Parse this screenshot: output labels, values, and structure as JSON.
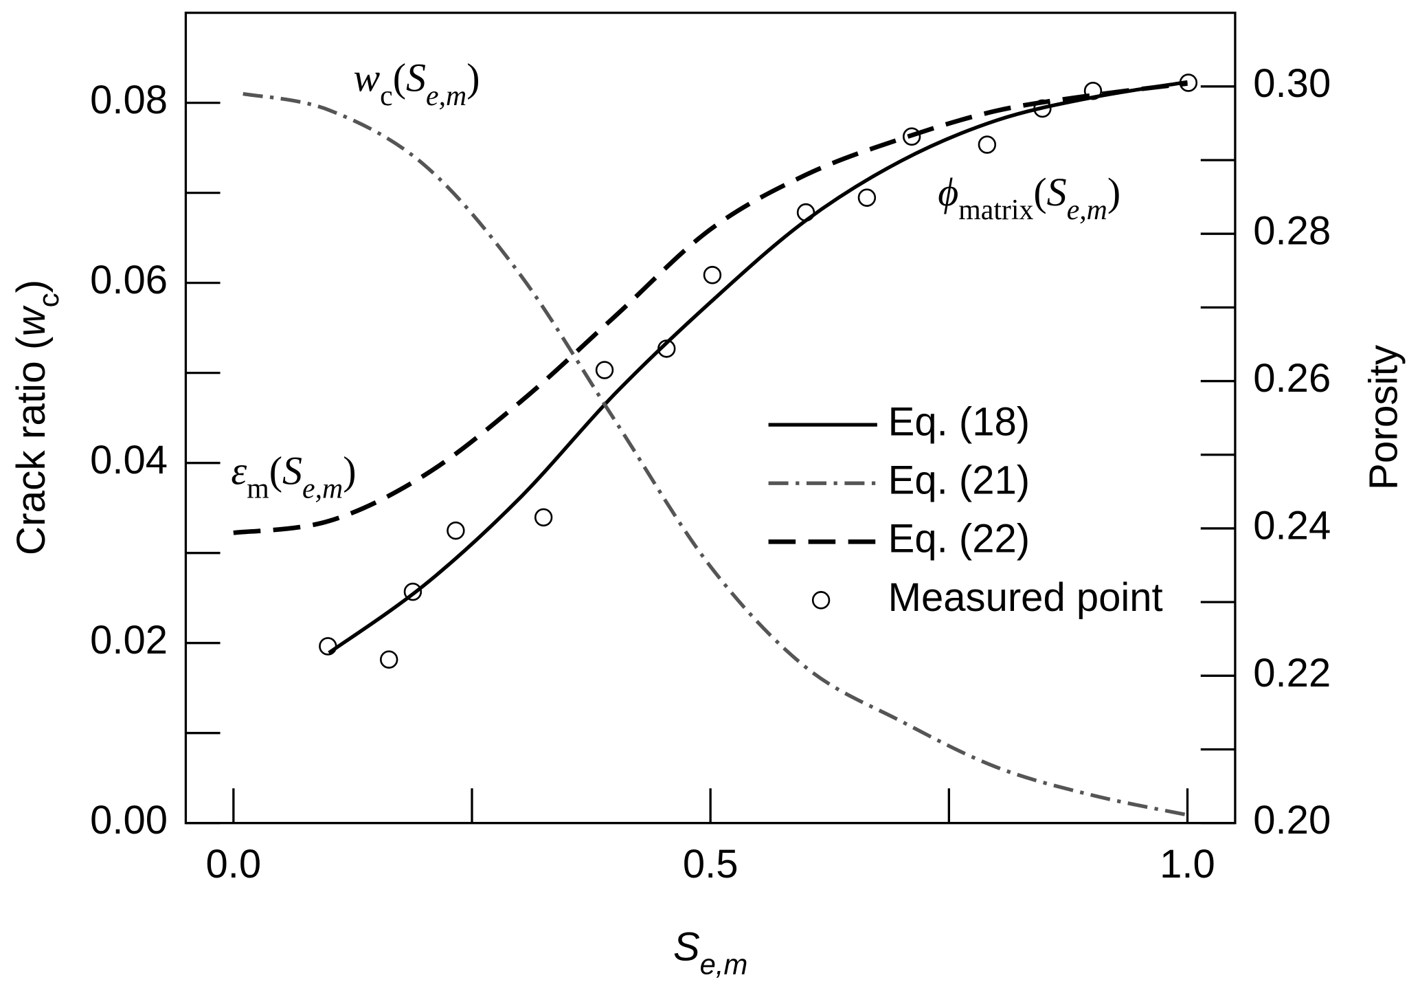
{
  "chart_data": {
    "type": "line",
    "x_label": [
      {
        "text": "S",
        "italic": true,
        "sub": false
      },
      {
        "text": "e,m",
        "italic": true,
        "sub": true
      }
    ],
    "y_label": [
      {
        "text": "Crack ratio (",
        "italic": false,
        "sub": false
      },
      {
        "text": "w",
        "italic": true,
        "sub": false
      },
      {
        "text": "c",
        "italic": false,
        "sub": true
      },
      {
        "text": ")",
        "italic": false,
        "sub": false
      }
    ],
    "y2_label": "Porosity",
    "xlim": [
      -0.05,
      1.05
    ],
    "xticks": [
      {
        "value": 0,
        "label": "0.0"
      },
      0.5,
      {
        "value": 1,
        "label": "1.0"
      }
    ],
    "xminor_ticks": [
      0.25,
      0.75
    ],
    "ylim": [
      0,
      0.09
    ],
    "yticks": [
      {
        "value": 0,
        "label": "0.00"
      },
      {
        "value": 0.02,
        "label": "0.02"
      },
      {
        "value": 0.04,
        "label": "0.04"
      },
      {
        "value": 0.06,
        "label": "0.06"
      },
      {
        "value": 0.08,
        "label": "0.08"
      }
    ],
    "yminor_ticks": [
      0.01,
      0.03,
      0.05,
      0.07
    ],
    "y2lim": [
      0.2,
      0.31
    ],
    "y2ticks": [
      {
        "value": 0.2,
        "label": "0.20"
      },
      0.22,
      0.24,
      0.26,
      0.28,
      {
        "value": 0.3,
        "label": "0.30"
      }
    ],
    "y2minor_ticks": [
      0.21,
      0.23,
      0.25,
      0.27,
      0.29
    ],
    "legend": "center-right",
    "series": [
      {
        "name": "Eq. (18)",
        "color": "#000000",
        "style": "solid",
        "axis": "y2",
        "x": [
          0.1,
          0.2,
          0.3,
          0.4,
          0.5,
          0.6,
          0.7,
          0.8,
          0.9,
          1.0
        ],
        "values": [
          0.2231,
          0.2323,
          0.2441,
          0.2583,
          0.2707,
          0.2818,
          0.2899,
          0.2954,
          0.2985,
          0.3006
        ]
      },
      {
        "name": "Eq. (21)",
        "color": "#555555",
        "style": "dashdot",
        "axis": "y",
        "x": [
          0.01,
          0.1,
          0.2,
          0.3,
          0.4,
          0.5,
          0.6,
          0.7,
          0.8,
          0.9,
          1.0
        ],
        "values": [
          0.081,
          0.0792,
          0.0731,
          0.061,
          0.0447,
          0.0285,
          0.0173,
          0.0113,
          0.0062,
          0.0031,
          0.0009
        ]
      },
      {
        "name": "Eq. (22)",
        "color": "#000000",
        "style": "dashed",
        "axis": "y2",
        "x": [
          0.0,
          0.1,
          0.2,
          0.3,
          0.4,
          0.5,
          0.6,
          0.7,
          0.8,
          0.9,
          1.0
        ],
        "values": [
          0.2394,
          0.241,
          0.2472,
          0.2571,
          0.2688,
          0.2806,
          0.288,
          0.2929,
          0.2967,
          0.2988,
          0.3004
        ]
      },
      {
        "name": "Measured point",
        "color": "#000000",
        "style": "marker",
        "axis": "y2",
        "x": [
          0.099,
          0.163,
          0.188,
          0.233,
          0.325,
          0.389,
          0.454,
          0.502,
          0.6,
          0.664,
          0.711,
          0.79,
          0.848,
          0.901,
          1.001
        ],
        "values": [
          0.224,
          0.2222,
          0.2314,
          0.2397,
          0.2415,
          0.2615,
          0.2644,
          0.2744,
          0.2829,
          0.2849,
          0.2932,
          0.2921,
          0.297,
          0.2994,
          0.3005
        ]
      }
    ],
    "annotations": [
      {
        "parts": [
          {
            "text": "w",
            "italic": true,
            "sub": false
          },
          {
            "text": "c",
            "italic": false,
            "sub": true
          },
          {
            "text": "(",
            "italic": false,
            "sub": false
          },
          {
            "text": "S",
            "italic": true,
            "sub": false
          },
          {
            "text": "e,m",
            "italic": true,
            "sub": true
          },
          {
            "text": ")",
            "italic": false,
            "sub": false
          }
        ]
      },
      {
        "parts": [
          {
            "text": "ϕ",
            "italic": true,
            "sub": false
          },
          {
            "text": "matrix",
            "italic": false,
            "sub": true
          },
          {
            "text": "(",
            "italic": false,
            "sub": false
          },
          {
            "text": "S",
            "italic": true,
            "sub": false
          },
          {
            "text": "e,m",
            "italic": true,
            "sub": true
          },
          {
            "text": ")",
            "italic": false,
            "sub": false
          }
        ]
      },
      {
        "parts": [
          {
            "text": "ε",
            "italic": true,
            "sub": false
          },
          {
            "text": "m",
            "italic": false,
            "sub": true
          },
          {
            "text": "(",
            "italic": false,
            "sub": false
          },
          {
            "text": "S",
            "italic": true,
            "sub": false
          },
          {
            "text": "e,m",
            "italic": true,
            "sub": true
          },
          {
            "text": ")",
            "italic": false,
            "sub": false
          }
        ]
      }
    ]
  }
}
